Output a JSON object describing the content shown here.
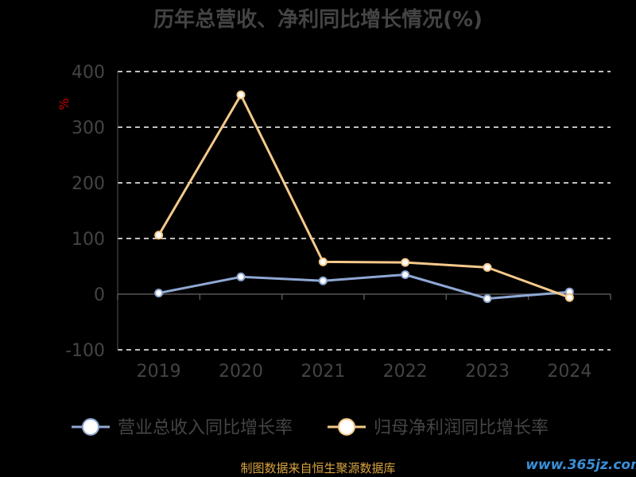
{
  "chart_data": {
    "type": "line",
    "title": "历年总营收、净利同比增长情况(%)",
    "ylabel": "%",
    "ylim": [
      -100,
      400
    ],
    "yticks": [
      -100,
      0,
      100,
      200,
      300,
      400
    ],
    "categories": [
      "2019",
      "2020",
      "2021",
      "2022",
      "2023",
      "2024"
    ],
    "grid": true,
    "legend_position": "bottom",
    "series": [
      {
        "name": "营业总收入同比增长率",
        "values": [
          2,
          31,
          24,
          35,
          -8,
          4
        ],
        "color": "#8fa8d4"
      },
      {
        "name": "归母净利润同比增长率",
        "values": [
          106,
          358,
          58,
          57,
          48,
          -6
        ],
        "color": "#f5c98a"
      }
    ]
  },
  "footer": {
    "source": "制图数据来自恒生聚源数据库",
    "source_color": "#d9a441",
    "watermark": "www.365jz.com",
    "watermark_color": "#3a8fd8"
  },
  "colors": {
    "text": "#444444",
    "grid": "#ffffff",
    "axis": "#555555",
    "ylabel": "#cc0000"
  }
}
